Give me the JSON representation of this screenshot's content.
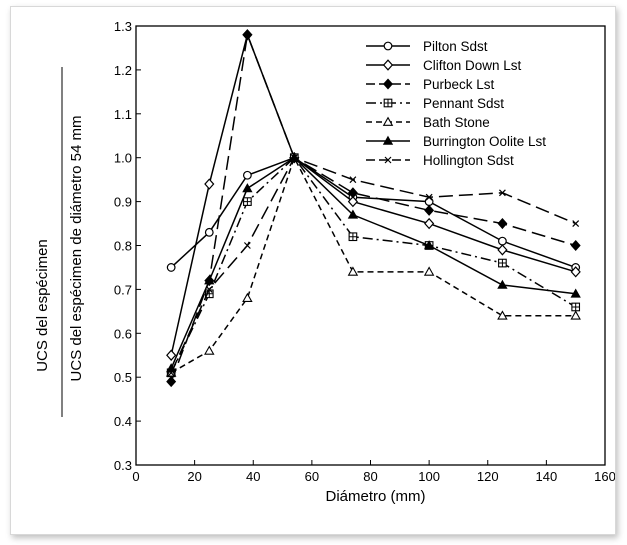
{
  "chart_data": {
    "type": "line",
    "xlabel": "Diámetro (mm)",
    "ylabel_numerator": "UCS del espécimen",
    "ylabel_denominator": "UCS del espécimen de diámetro  54 mm",
    "xlim": [
      0,
      160
    ],
    "ylim": [
      0.3,
      1.3
    ],
    "xticks": [
      "0",
      "20",
      "40",
      "60",
      "80",
      "100",
      "120",
      "140",
      "160"
    ],
    "yticks": [
      "0.3",
      "0.4",
      "0.5",
      "0.6",
      "0.7",
      "0.8",
      "0.9",
      "1.0",
      "1.1",
      "1.2",
      "1.3"
    ],
    "grid": false,
    "legend_position": "top-right",
    "series": [
      {
        "name": "Pilton Sdst",
        "marker": "circle-open",
        "dash": "solid",
        "x": [
          12,
          25,
          38,
          54,
          74,
          100,
          125,
          150
        ],
        "y": [
          0.75,
          0.83,
          0.96,
          1.0,
          0.91,
          0.9,
          0.81,
          0.75
        ]
      },
      {
        "name": "Clifton Down Lst",
        "marker": "diamond-open",
        "dash": "solid",
        "x": [
          12,
          25,
          38,
          54,
          74,
          100,
          125,
          150
        ],
        "y": [
          0.55,
          0.94,
          1.28,
          1.0,
          0.9,
          0.85,
          0.79,
          0.74
        ]
      },
      {
        "name": "Purbeck Lst",
        "marker": "diamond-filled",
        "dash": "longdash",
        "x": [
          12,
          25,
          38,
          54,
          74,
          100,
          125,
          150
        ],
        "y": [
          0.49,
          0.72,
          1.28,
          1.0,
          0.92,
          0.88,
          0.85,
          0.8
        ]
      },
      {
        "name": "Pennant Sdst",
        "marker": "square-plus",
        "dash": "dashdot",
        "x": [
          12,
          25,
          38,
          54,
          74,
          100,
          125,
          150
        ],
        "y": [
          0.51,
          0.69,
          0.9,
          1.0,
          0.82,
          0.8,
          0.76,
          0.66
        ]
      },
      {
        "name": "Bath Stone",
        "marker": "triangle-open",
        "dash": "dashed",
        "x": [
          12,
          25,
          38,
          54,
          74,
          100,
          125,
          150
        ],
        "y": [
          0.51,
          0.56,
          0.68,
          1.0,
          0.74,
          0.74,
          0.64,
          0.64
        ]
      },
      {
        "name": "Burrington Oolite Lst",
        "marker": "triangle-filled",
        "dash": "solid",
        "x": [
          12,
          25,
          38,
          54,
          74,
          100,
          125,
          150
        ],
        "y": [
          0.52,
          0.72,
          0.93,
          1.0,
          0.87,
          0.8,
          0.71,
          0.69
        ]
      },
      {
        "name": "Hollington Sdst",
        "marker": "x",
        "dash": "longdash",
        "x": [
          12,
          25,
          38,
          54,
          74,
          100,
          125,
          150
        ],
        "y": [
          0.51,
          0.7,
          0.8,
          1.0,
          0.95,
          0.91,
          0.92,
          0.85
        ]
      }
    ]
  }
}
